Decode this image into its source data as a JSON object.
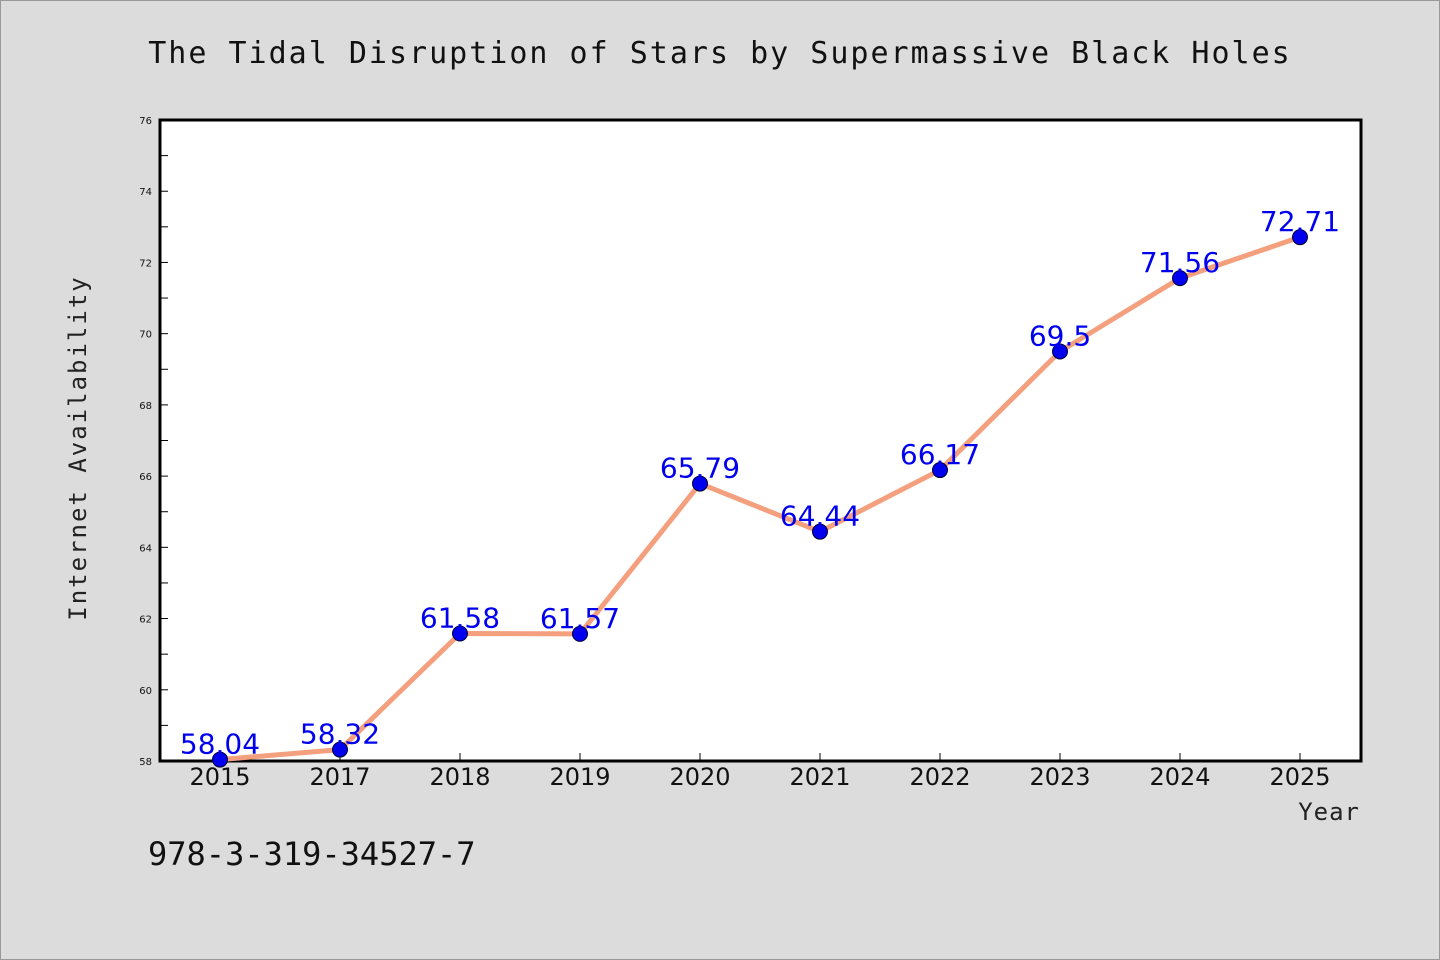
{
  "chart_data": {
    "type": "line",
    "title": "The Tidal Disruption of Stars by Supermassive Black Holes",
    "xlabel": "Year",
    "ylabel": "Internet Availability",
    "categories": [
      "2015",
      "2017",
      "2018",
      "2019",
      "2020",
      "2021",
      "2022",
      "2023",
      "2024",
      "2025"
    ],
    "series": [
      {
        "values": [
          58.04,
          58.32,
          61.58,
          61.57,
          65.79,
          64.44,
          66.17,
          69.5,
          71.56,
          72.71
        ],
        "labels": [
          "58.04",
          "58.32",
          "61.58",
          "61.57",
          "65.79",
          "64.44",
          "66.17",
          "69.5",
          "71.56",
          "72.71"
        ]
      }
    ],
    "ylim": [
      58,
      76
    ],
    "yticks": [
      "58",
      "60",
      "62",
      "64",
      "66",
      "68",
      "70",
      "72",
      "74",
      "76"
    ],
    "grid": false,
    "line_color": "#f4a07e",
    "marker_color": "#0000ee",
    "label_color": "#0000ee"
  },
  "footer": {
    "isbn": "978-3-319-34527-7"
  }
}
